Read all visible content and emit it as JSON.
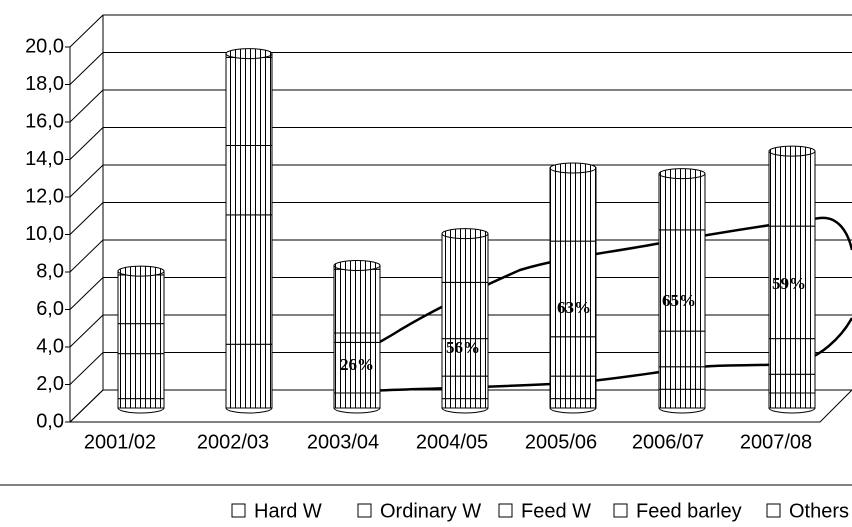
{
  "chart_data": {
    "type": "bar",
    "stacked": true,
    "categories": [
      "2001/02",
      "2002/03",
      "2003/04",
      "2004/05",
      "2005/06",
      "2006/07",
      "2007/08"
    ],
    "series": [
      {
        "name": "Hard W",
        "color": "#ffffff",
        "values": [
          0.5,
          3.4,
          0.8,
          0.5,
          0.5,
          1.0,
          0.8
        ]
      },
      {
        "name": "Ordinary W",
        "color": "#ffffff",
        "values": [
          2.4,
          6.9,
          2.7,
          1.2,
          1.2,
          1.2,
          1.0
        ]
      },
      {
        "name": "Feed W",
        "color": "#ffffff",
        "values": [
          1.6,
          3.7,
          0.5,
          2.0,
          2.1,
          1.9,
          1.9
        ]
      },
      {
        "name": "Feed barley",
        "color": "#ffffff",
        "values": [
          2.6,
          4.7,
          3.4,
          3.0,
          5.1,
          5.4,
          6.0
        ]
      },
      {
        "name": "Others",
        "color": "#ffffff",
        "values": [
          0.2,
          0.2,
          0.2,
          2.6,
          3.9,
          3.0,
          4.0
        ]
      }
    ],
    "ylim": [
      0,
      20
    ],
    "yticks": [
      {
        "value": 0,
        "label": "0,0"
      },
      {
        "value": 2,
        "label": "2,0"
      },
      {
        "value": 4,
        "label": "4,0"
      },
      {
        "value": 6,
        "label": "6,0"
      },
      {
        "value": 8,
        "label": "8,0"
      },
      {
        "value": 10,
        "label": "10,0"
      },
      {
        "value": 12,
        "label": "12,0"
      },
      {
        "value": 14,
        "label": "14,0"
      },
      {
        "value": 16,
        "label": "16,0"
      },
      {
        "value": 18,
        "label": "18,0"
      },
      {
        "value": 20,
        "label": "20,0"
      }
    ],
    "grid": true,
    "annotations": [
      "26%",
      "56%",
      "63%",
      "65%",
      "59%"
    ]
  }
}
